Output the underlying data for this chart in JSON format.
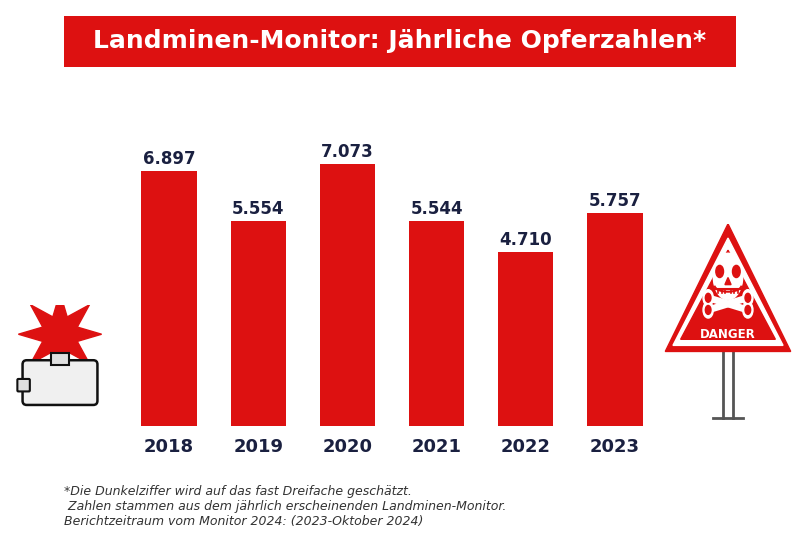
{
  "title": "Landminen-Monitor: Jährliche Opferzahlen*",
  "title_bg_color": "#dd1111",
  "title_text_color": "#ffffff",
  "categories": [
    "2018",
    "2019",
    "2020",
    "2021",
    "2022",
    "2023"
  ],
  "values": [
    6897,
    5554,
    7073,
    5544,
    4710,
    5757
  ],
  "labels": [
    "6.897",
    "5.554",
    "7.073",
    "5.544",
    "4.710",
    "5.757"
  ],
  "bar_color": "#dd1111",
  "background_color": "#ffffff",
  "label_color": "#1a2040",
  "xlabel_color": "#1a2040",
  "ylim": [
    0,
    8200
  ],
  "footnote_line1": "*Die Dunkelziffer wird auf das fast Dreifache geschätzt.",
  "footnote_line2": " Zahlen stammen aus dem jährlich erscheinenden Landminen-Monitor.",
  "footnote_line3": "Berichtzeitraum vom Monitor 2024: (2023-Oktober 2024)",
  "footnote_color": "#333333",
  "footnote_fontsize": 9,
  "bar_value_fontsize": 12,
  "xtick_fontsize": 13,
  "title_fontsize": 18
}
